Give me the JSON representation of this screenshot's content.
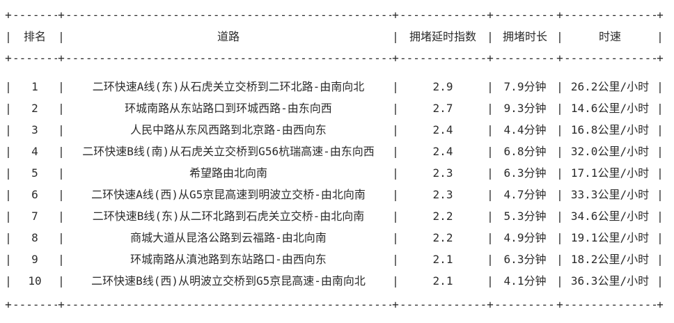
{
  "table": {
    "columns": [
      "排名",
      "道路",
      "拥堵延时指数",
      "拥堵时长",
      "时速"
    ],
    "rows": [
      [
        "1",
        "二环快速A线(东)从石虎关立交桥到二环北路-由南向北",
        "2.9",
        "7.9分钟",
        "26.2公里/小时"
      ],
      [
        "2",
        "环城南路从东站路口到环城西路-由东向西",
        "2.7",
        "9.3分钟",
        "14.6公里/小时"
      ],
      [
        "3",
        "人民中路从东风西路到北京路-由西向东",
        "2.4",
        "4.4分钟",
        "16.8公里/小时"
      ],
      [
        "4",
        "二环快速B线(南)从石虎关立交桥到G56杭瑞高速-由东向西",
        "2.4",
        "6.8分钟",
        "32.0公里/小时"
      ],
      [
        "5",
        "希望路由北向南",
        "2.3",
        "6.3分钟",
        "17.1公里/小时"
      ],
      [
        "6",
        "二环快速A线(西)从G5京昆高速到明波立交桥-由北向南",
        "2.3",
        "4.7分钟",
        "33.3公里/小时"
      ],
      [
        "7",
        "二环快速B线(东)从二环北路到石虎关立交桥-由北向南",
        "2.2",
        "5.3分钟",
        "34.6公里/小时"
      ],
      [
        "8",
        "商城大道从昆洛公路到云福路-由北向南",
        "2.2",
        "4.9分钟",
        "19.1公里/小时"
      ],
      [
        "9",
        "环城南路从滇池路到东站路口-由西向东",
        "2.1",
        "6.3分钟",
        "18.2公里/小时"
      ],
      [
        "10",
        "二环快速B线(西)从明波立交桥到G5京昆高速-由南向北",
        "2.1",
        "4.1分钟",
        "36.3公里/小时"
      ]
    ]
  },
  "chart_data": {
    "type": "table",
    "columns": [
      "排名",
      "道路",
      "拥堵延时指数",
      "拥堵时长",
      "时速"
    ],
    "rows": [
      [
        "1",
        "二环快速A线(东)从石虎关立交桥到二环北路-由南向北",
        "2.9",
        "7.9分钟",
        "26.2公里/小时"
      ],
      [
        "2",
        "环城南路从东站路口到环城西路-由东向西",
        "2.7",
        "9.3分钟",
        "14.6公里/小时"
      ],
      [
        "3",
        "人民中路从东风西路到北京路-由西向东",
        "2.4",
        "4.4分钟",
        "16.8公里/小时"
      ],
      [
        "4",
        "二环快速B线(南)从石虎关立交桥到G56杭瑞高速-由东向西",
        "2.4",
        "6.8分钟",
        "32.0公里/小时"
      ],
      [
        "5",
        "希望路由北向南",
        "2.3",
        "6.3分钟",
        "17.1公里/小时"
      ],
      [
        "6",
        "二环快速A线(西)从G5京昆高速到明波立交桥-由北向南",
        "2.3",
        "4.7分钟",
        "33.3公里/小时"
      ],
      [
        "7",
        "二环快速B线(东)从二环北路到石虎关立交桥-由北向南",
        "2.2",
        "5.3分钟",
        "34.6公里/小时"
      ],
      [
        "8",
        "商城大道从昆洛公路到云福路-由北向南",
        "2.2",
        "4.9分钟",
        "19.1公里/小时"
      ],
      [
        "9",
        "环城南路从滇池路到东站路口-由西向东",
        "2.1",
        "6.3分钟",
        "18.2公里/小时"
      ],
      [
        "10",
        "二环快速B线(西)从明波立交桥到G5京昆高速-由南向北",
        "2.1",
        "4.1分钟",
        "36.3公里/小时"
      ]
    ],
    "numeric_series": [
      {
        "name": "拥堵延时指数",
        "values": [
          2.9,
          2.7,
          2.4,
          2.4,
          2.3,
          2.3,
          2.2,
          2.2,
          2.1,
          2.1
        ]
      },
      {
        "name": "拥堵时长(分钟)",
        "values": [
          7.9,
          9.3,
          4.4,
          6.8,
          6.3,
          4.7,
          5.3,
          4.9,
          6.3,
          4.1
        ]
      },
      {
        "name": "时速(公里/小时)",
        "values": [
          26.2,
          14.6,
          16.8,
          32.0,
          17.1,
          33.3,
          34.6,
          19.1,
          18.2,
          36.3
        ]
      }
    ]
  },
  "glyphs": {
    "pipe": "|",
    "plus": "+",
    "dashes": "--------------------------------------------------------------------------------------------------------------------------------------------------------"
  },
  "colors": {
    "text": "#2b2b2b",
    "background": "#ffffff"
  }
}
